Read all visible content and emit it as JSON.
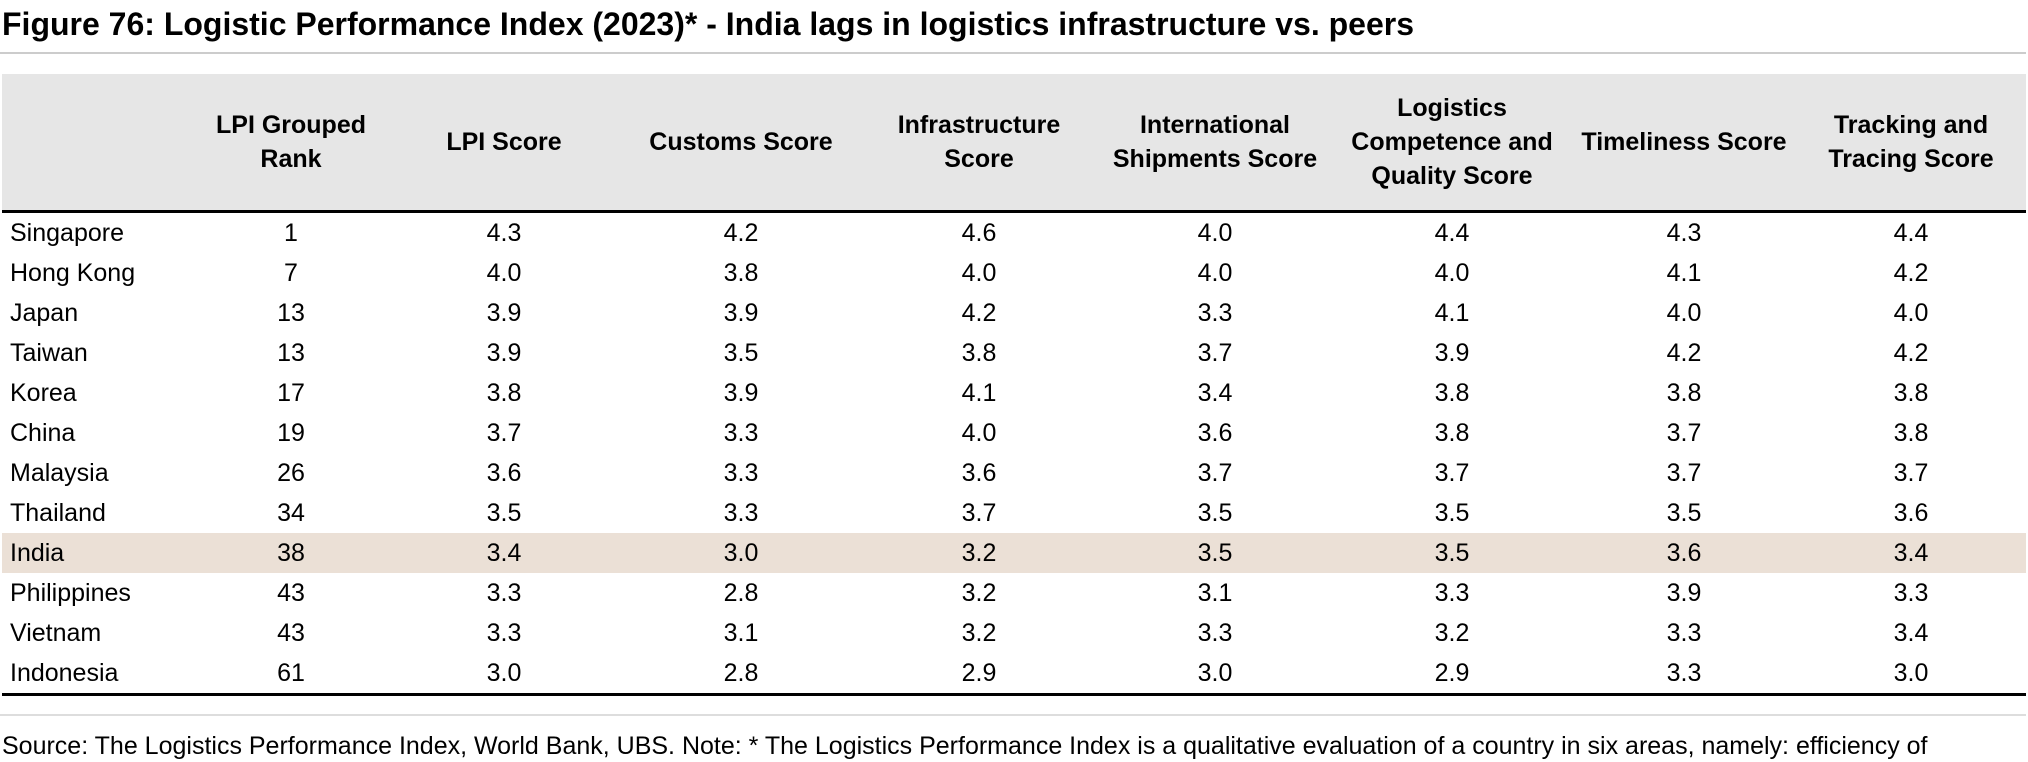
{
  "figure": {
    "title": "Figure 76: Logistic Performance Index (2023)* - India lags in logistics infrastructure vs. peers"
  },
  "table": {
    "headers": [
      "",
      "LPI Grouped Rank",
      "LPI Score",
      "Customs Score",
      "Infrastructure Score",
      "International Shipments Score",
      "Logistics Competence and Quality Score",
      "Timeliness Score",
      "Tracking and Tracing Score"
    ],
    "rows": [
      [
        "Singapore",
        "1",
        "4.3",
        "4.2",
        "4.6",
        "4.0",
        "4.4",
        "4.3",
        "4.4"
      ],
      [
        "Hong Kong",
        "7",
        "4.0",
        "3.8",
        "4.0",
        "4.0",
        "4.0",
        "4.1",
        "4.2"
      ],
      [
        "Japan",
        "13",
        "3.9",
        "3.9",
        "4.2",
        "3.3",
        "4.1",
        "4.0",
        "4.0"
      ],
      [
        "Taiwan",
        "13",
        "3.9",
        "3.5",
        "3.8",
        "3.7",
        "3.9",
        "4.2",
        "4.2"
      ],
      [
        "Korea",
        "17",
        "3.8",
        "3.9",
        "4.1",
        "3.4",
        "3.8",
        "3.8",
        "3.8"
      ],
      [
        "China",
        "19",
        "3.7",
        "3.3",
        "4.0",
        "3.6",
        "3.8",
        "3.7",
        "3.8"
      ],
      [
        "Malaysia",
        "26",
        "3.6",
        "3.3",
        "3.6",
        "3.7",
        "3.7",
        "3.7",
        "3.7"
      ],
      [
        "Thailand",
        "34",
        "3.5",
        "3.3",
        "3.7",
        "3.5",
        "3.5",
        "3.5",
        "3.6"
      ],
      [
        "India",
        "38",
        "3.4",
        "3.0",
        "3.2",
        "3.5",
        "3.5",
        "3.6",
        "3.4"
      ],
      [
        "Philippines",
        "43",
        "3.3",
        "2.8",
        "3.2",
        "3.1",
        "3.3",
        "3.9",
        "3.3"
      ],
      [
        "Vietnam",
        "43",
        "3.3",
        "3.1",
        "3.2",
        "3.3",
        "3.2",
        "3.3",
        "3.4"
      ],
      [
        "Indonesia",
        "61",
        "3.0",
        "2.8",
        "2.9",
        "3.0",
        "2.9",
        "3.3",
        "3.0"
      ]
    ],
    "highlighted_row": "India",
    "highlight_color": "#ebe0d6",
    "header_background": "#e6e6e6"
  },
  "source": {
    "text": "Source: The Logistics Performance Index, World Bank, UBS. Note: * The Logistics Performance Index is a qualitative evaluation of a country in six areas, namely: efficiency of"
  }
}
